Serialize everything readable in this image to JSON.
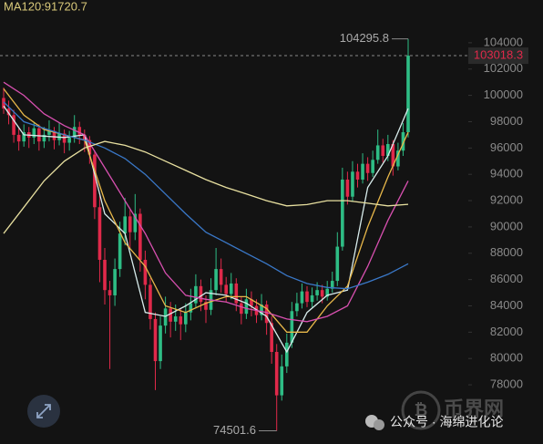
{
  "chart_data": {
    "type": "candlestick",
    "ma_label": "MA120:91720.7",
    "ylim": [
      73500,
      107250
    ],
    "yticks": [
      78000,
      80000,
      82000,
      84000,
      86000,
      88000,
      90000,
      92000,
      94000,
      96000,
      98000,
      100000,
      102000,
      104000
    ],
    "annotations": {
      "high": 104295.8,
      "low": 74501.6,
      "last": 103018.3
    },
    "up_color": "#2ebd85",
    "down_color": "#e0294a",
    "candles": [
      [
        99800,
        100600,
        98600,
        99000
      ],
      [
        99000,
        99600,
        97800,
        98500
      ],
      [
        98500,
        98900,
        96400,
        97000
      ],
      [
        97000,
        97500,
        95800,
        96500
      ],
      [
        96500,
        97800,
        96100,
        97200
      ],
      [
        97200,
        97600,
        96000,
        96800
      ],
      [
        96800,
        98000,
        96300,
        97500
      ],
      [
        97500,
        97800,
        95800,
        96500
      ],
      [
        96500,
        97600,
        96000,
        97000
      ],
      [
        97000,
        98100,
        96500,
        97300
      ],
      [
        97300,
        97600,
        95900,
        96600
      ],
      [
        96600,
        97900,
        96200,
        97100
      ],
      [
        97100,
        97400,
        95600,
        96400
      ],
      [
        96400,
        97300,
        95800,
        96800
      ],
      [
        96800,
        98500,
        96400,
        97600
      ],
      [
        97600,
        98000,
        96300,
        97000
      ],
      [
        97000,
        97400,
        95700,
        96600
      ],
      [
        96600,
        96900,
        94800,
        95500
      ],
      [
        95500,
        95800,
        90600,
        91500
      ],
      [
        91500,
        92400,
        85800,
        87500
      ],
      [
        87500,
        88400,
        84100,
        85200
      ],
      [
        85200,
        85900,
        79200,
        84800
      ],
      [
        84800,
        87600,
        84000,
        86800
      ],
      [
        86800,
        90400,
        86200,
        89500
      ],
      [
        89500,
        92200,
        88600,
        90800
      ],
      [
        90800,
        91300,
        88400,
        89600
      ],
      [
        89600,
        92500,
        89000,
        91000
      ],
      [
        91000,
        91400,
        86600,
        87500
      ],
      [
        87500,
        88200,
        84500,
        85600
      ],
      [
        85600,
        86100,
        82200,
        83000
      ],
      [
        83000,
        83500,
        77600,
        79800
      ],
      [
        79800,
        83200,
        79200,
        82500
      ],
      [
        82500,
        84700,
        81900,
        83800
      ],
      [
        83800,
        84300,
        81600,
        82800
      ],
      [
        82800,
        84100,
        82100,
        83200
      ],
      [
        83200,
        83800,
        81400,
        82600
      ],
      [
        82600,
        84200,
        82000,
        83500
      ],
      [
        83500,
        85300,
        82900,
        84200
      ],
      [
        84200,
        86400,
        83900,
        85500
      ],
      [
        85500,
        86000,
        83600,
        84300
      ],
      [
        84300,
        84800,
        82700,
        83700
      ],
      [
        83700,
        86100,
        83300,
        85200
      ],
      [
        85200,
        88400,
        84800,
        86800
      ],
      [
        86800,
        87600,
        85000,
        85600
      ],
      [
        85600,
        86200,
        84300,
        84900
      ],
      [
        84900,
        86500,
        84500,
        85700
      ],
      [
        85700,
        86100,
        83600,
        84200
      ],
      [
        84200,
        84700,
        82600,
        83400
      ],
      [
        83400,
        85300,
        83000,
        84500
      ],
      [
        84500,
        85100,
        83200,
        84000
      ],
      [
        84000,
        84500,
        82700,
        83300
      ],
      [
        83300,
        84900,
        82900,
        84100
      ],
      [
        84100,
        84400,
        81800,
        82700
      ],
      [
        82700,
        83200,
        79600,
        80500
      ],
      [
        80500,
        81100,
        74501.6,
        77200
      ],
      [
        77200,
        80300,
        76800,
        79400
      ],
      [
        79400,
        81900,
        78900,
        81200
      ],
      [
        81200,
        84300,
        80800,
        83600
      ],
      [
        83600,
        85000,
        83200,
        84200
      ],
      [
        84200,
        85700,
        83800,
        85100
      ],
      [
        85100,
        85500,
        83900,
        84300
      ],
      [
        84300,
        85400,
        83900,
        84800
      ],
      [
        84800,
        85800,
        84400,
        85200
      ],
      [
        85200,
        85600,
        84200,
        84700
      ],
      [
        84700,
        85900,
        84400,
        85300
      ],
      [
        85300,
        86600,
        85000,
        85900
      ],
      [
        85900,
        89600,
        85500,
        88500
      ],
      [
        88500,
        94500,
        88200,
        93600
      ],
      [
        93600,
        94200,
        91700,
        92300
      ],
      [
        92300,
        95000,
        91900,
        94200
      ],
      [
        94200,
        94800,
        93000,
        93600
      ],
      [
        93600,
        95600,
        93300,
        94800
      ],
      [
        94800,
        95300,
        93500,
        94100
      ],
      [
        94100,
        95800,
        93800,
        95100
      ],
      [
        95100,
        97400,
        94800,
        96200
      ],
      [
        96200,
        96700,
        94900,
        95400
      ],
      [
        95400,
        97000,
        95000,
        96300
      ],
      [
        96300,
        96600,
        93900,
        94600
      ],
      [
        94600,
        96400,
        94300,
        95800
      ],
      [
        95800,
        97900,
        95400,
        97200
      ],
      [
        97200,
        104295.8,
        96800,
        103018.3
      ]
    ],
    "series": [
      {
        "color": "#d8ecec",
        "values": [
          99200,
          97000,
          96900,
          96800,
          97000,
          91000,
          89500,
          83500,
          83200,
          84000,
          85000,
          84800,
          84200,
          83200,
          80500,
          83500,
          84800,
          85200,
          93000,
          95400,
          99000
        ]
      },
      {
        "color": "#e8b84a",
        "values": [
          100500,
          98500,
          97400,
          97000,
          96600,
          92000,
          88800,
          87000,
          84000,
          83500,
          84200,
          84700,
          84700,
          83800,
          82000,
          82000,
          84000,
          85500,
          90000,
          93800,
          97200
        ]
      },
      {
        "color": "#d850b0",
        "values": [
          101000,
          100000,
          98600,
          97700,
          97000,
          94500,
          92000,
          89500,
          86500,
          84800,
          84500,
          84300,
          83800,
          83500,
          83000,
          82800,
          83200,
          84000,
          87000,
          90500,
          93500
        ]
      },
      {
        "color": "#3a78c8",
        "values": [
          99500,
          98000,
          97500,
          97000,
          96600,
          96000,
          95200,
          94000,
          92500,
          91000,
          89600,
          88800,
          88000,
          87200,
          86300,
          85700,
          85400,
          85300,
          85800,
          86400,
          87200
        ]
      },
      {
        "color": "#e8e0a0",
        "values": [
          89500,
          91500,
          93500,
          95000,
          96000,
          96500,
          96200,
          95700,
          95000,
          94300,
          93600,
          93000,
          92500,
          92000,
          91600,
          91700,
          92000,
          92000,
          91800,
          91600,
          91720.7
        ]
      }
    ]
  },
  "watermark": "公众号 · 海绵进化论",
  "logo": "币界网"
}
